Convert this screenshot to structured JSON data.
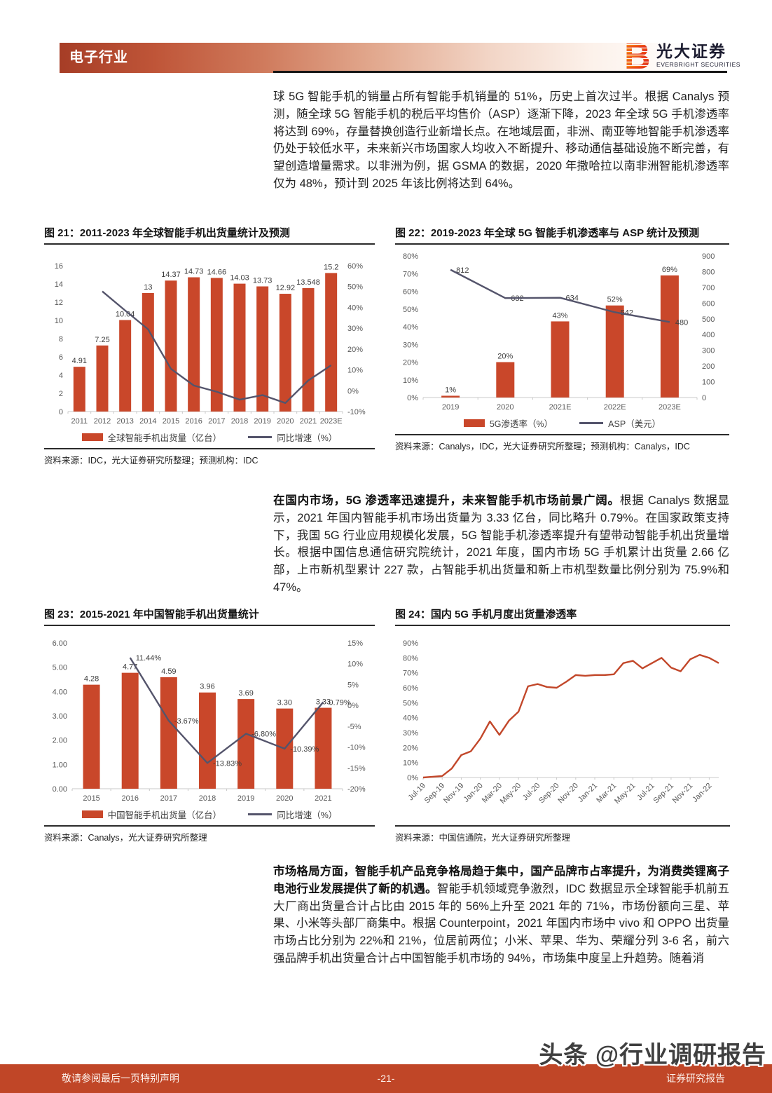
{
  "header": {
    "category_label": "电子行业",
    "brand": {
      "cn": "光大证券",
      "en": "EVERBRIGHT SECURITIES"
    }
  },
  "paragraphs": {
    "p1": "球 5G 智能手机的销量占所有智能手机销量的 51%，历史上首次过半。根据 Canalys 预测，随全球 5G 智能手机的税后平均售价（ASP）逐渐下降，2023 年全球 5G 手机渗透率将达到 69%，存量替换创造行业新增长点。在地域层面，非洲、南亚等地智能手机渗透率仍处于较低水平，未来新兴市场国家人均收入不断提升、移动通信基础设施不断完善，有望创造增量需求。以非洲为例，据 GSMA 的数据，2020 年撒哈拉以南非洲智能机渗透率仅为 48%，预计到 2025 年该比例将达到 64%。",
    "p2_bold": "在国内市场，5G 渗透率迅速提升，未来智能手机市场前景广阔。",
    "p2_rest": "根据 Canalys 数据显示，2021 年国内智能手机市场出货量为 3.33 亿台，同比略升 0.79%。在国家政策支持下，我国 5G 行业应用规模化发展，5G 智能手机渗透率提升有望带动智能手机出货量增长。根据中国信息通信研究院统计，2021 年度，国内市场 5G 手机累计出货量 2.66 亿部，上市新机型累计 227 款，占智能手机出货量和新上市机型数量比例分别为 75.9%和 47%。",
    "p3_bold": "市场格局方面，智能手机产品竞争格局趋于集中，国产品牌市占率提升，为消费类锂离子电池行业发展提供了新的机遇。",
    "p3_rest": "智能手机领域竞争激烈，IDC 数据显示全球智能手机前五大厂商出货量合计占比由 2015 年的 56%上升至 2021 年的 71%，市场份额向三星、苹果、小米等头部厂商集中。根据 Counterpoint，2021 年国内市场中 vivo 和 OPPO 出货量市场占比分别为 22%和 21%，位居前两位；小米、苹果、华为、荣耀分列 3-6 名，前六强品牌手机出货量合计占中国智能手机市场的 94%，市场集中度呈上升趋势。随着消"
  },
  "chart_data": [
    {
      "type": "bar",
      "title": "图 21：2011-2023 年全球智能手机出货量统计及预测",
      "categories": [
        "2011",
        "2012",
        "2013",
        "2014",
        "2015",
        "2016",
        "2017",
        "2018",
        "2019",
        "2020",
        "2021",
        "2023E"
      ],
      "bar": {
        "name": "全球智能手机出货量（亿台）",
        "color": "#c9472a",
        "values": [
          4.91,
          7.25,
          10.04,
          13,
          14.37,
          14.73,
          14.66,
          14.03,
          13.73,
          12.92,
          13.548,
          15.2
        ],
        "labels": [
          "4.91",
          "7.25",
          "10.04",
          "13",
          "14.37",
          "14.73",
          "14.66",
          "14.03",
          "13.73",
          "12.92",
          "13.548",
          "15.2"
        ]
      },
      "line": {
        "name": "同比增速（%）",
        "color": "#54546b",
        "axis": "right",
        "values": [
          null,
          47.7,
          38.5,
          29.5,
          10.5,
          2.5,
          -0.5,
          -4.3,
          -2.1,
          -5.9,
          4.9,
          12.2
        ]
      },
      "left_axis": {
        "min": 0,
        "max": 16,
        "step": 2,
        "format": "int"
      },
      "right_axis": {
        "min": -10,
        "max": 60,
        "step": 10,
        "format": "pct"
      },
      "legend": [
        "全球智能手机出货量（亿台）",
        "同比增速（%）"
      ],
      "source": "资料来源：IDC，光大证券研究所整理；预测机构：IDC"
    },
    {
      "type": "bar",
      "title": "图 22：2019-2023 年全球 5G 智能手机渗透率与 ASP 统计及预测",
      "categories": [
        "2019",
        "2020",
        "2021E",
        "2022E",
        "2023E"
      ],
      "bar": {
        "name": "5G渗透率（%）",
        "color": "#c9472a",
        "values": [
          1,
          20,
          43,
          52,
          69
        ],
        "labels": [
          "1%",
          "20%",
          "43%",
          "52%",
          "69%"
        ]
      },
      "line": {
        "name": "ASP（美元）",
        "color": "#54546b",
        "axis": "right",
        "values": [
          812,
          632,
          634,
          542,
          480
        ],
        "labels": [
          "812",
          "632",
          "634",
          "542",
          "480"
        ]
      },
      "left_axis": {
        "min": 0,
        "max": 80,
        "step": 10,
        "format": "pct"
      },
      "right_axis": {
        "min": 0,
        "max": 900,
        "step": 100,
        "format": "int"
      },
      "legend": [
        "5G渗透率（%）",
        "ASP（美元）"
      ],
      "source": "资料来源：Canalys，IDC，光大证券研究所整理；预测机构：Canalys，IDC"
    },
    {
      "type": "bar",
      "title": "图 23：2015-2021 年中国智能手机出货量统计",
      "categories": [
        "2015",
        "2016",
        "2017",
        "2018",
        "2019",
        "2020",
        "2021"
      ],
      "bar": {
        "name": "中国智能手机出货量（亿台）",
        "color": "#c9472a",
        "values": [
          4.28,
          4.77,
          4.59,
          3.96,
          3.69,
          3.3,
          3.33
        ],
        "labels": [
          "4.28",
          "4.77",
          "4.59",
          "3.96",
          "3.69",
          "3.30",
          "3.33"
        ]
      },
      "line": {
        "name": "同比增速（%）",
        "color": "#54546b",
        "axis": "right",
        "values": [
          null,
          11.44,
          -3.67,
          -13.83,
          -6.8,
          -10.39,
          0.79
        ],
        "labels": [
          "",
          "11.44%",
          "-3.67%",
          "-13.83%",
          "-6.80%",
          "-10.39%",
          "0.79%"
        ]
      },
      "left_axis": {
        "min": 0,
        "max": 6,
        "step": 1,
        "format": "dec2"
      },
      "right_axis": {
        "min": -20,
        "max": 15,
        "step": 5,
        "format": "pct"
      },
      "legend": [
        "中国智能手机出货量（亿台）",
        "同比增速（%）"
      ],
      "source": "资料来源：Canalys，光大证券研究所整理"
    },
    {
      "type": "line",
      "title": "图 24：国内 5G 手机月度出货量渗透率",
      "categories": [
        "Jul-19",
        "Sep-19",
        "Nov-19",
        "Jan-20",
        "Mar-20",
        "May-20",
        "Jul-20",
        "Sep-20",
        "Nov-20",
        "Jan-21",
        "Mar-21",
        "May-21",
        "Jul-21",
        "Sep-21",
        "Nov-21",
        "Jan-22"
      ],
      "points_per_tick": 2,
      "line": {
        "name": "国内5G手机月度出货量渗透率",
        "color": "#c2472a",
        "axis": "left",
        "values": [
          0,
          0.5,
          1,
          6,
          15,
          17.5,
          26,
          37.5,
          28.5,
          38,
          44,
          61,
          62.5,
          60.5,
          60,
          64,
          68.5,
          68,
          68.5,
          68.5,
          69,
          76.5,
          78,
          73,
          76.5,
          80,
          73.5,
          71,
          79,
          82,
          80,
          76.5
        ]
      },
      "left_axis": {
        "min": 0,
        "max": 90,
        "step": 10,
        "format": "pct"
      },
      "legend": null,
      "source": "资料来源：中国信通院，光大证券研究所整理"
    }
  ],
  "footer": {
    "left": "敬请参阅最后一页特别声明",
    "page": "-21-",
    "right": "证券研究报告",
    "watermark": "头条 @行业调研报告"
  },
  "colors": {
    "accent": "#c9472a",
    "line_dark": "#54546b",
    "footer_band": "#c04627"
  }
}
